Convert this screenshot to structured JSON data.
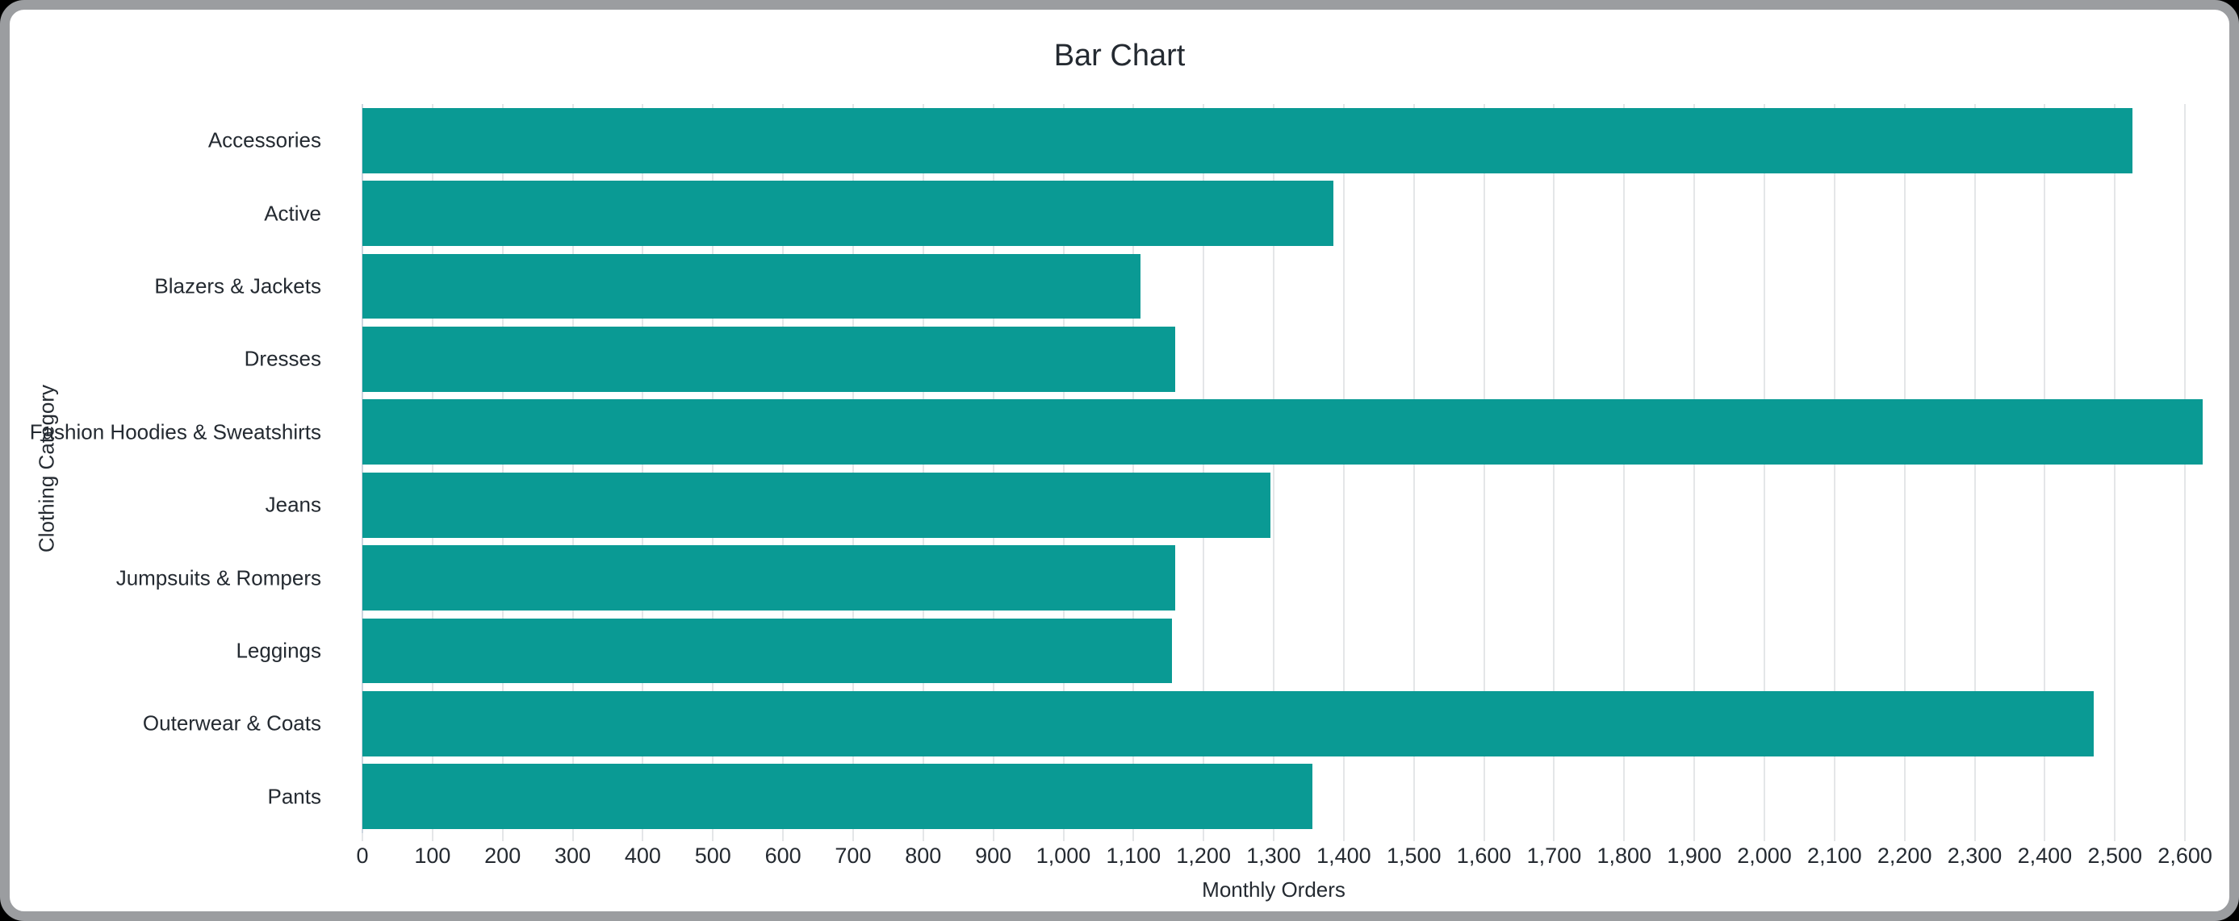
{
  "window": {
    "border_color": "#9b9da0",
    "background_color": "#ffffff"
  },
  "chart_data": {
    "type": "bar",
    "orientation": "horizontal",
    "title": "Bar Chart",
    "xlabel": "Monthly Orders",
    "ylabel": "Clothing Category",
    "categories": [
      "Accessories",
      "Active",
      "Blazers & Jackets",
      "Dresses",
      "Fashion Hoodies & Sweatshirts",
      "Jeans",
      "Jumpsuits & Rompers",
      "Leggings",
      "Outerwear & Coats",
      "Pants"
    ],
    "values": [
      2525,
      1385,
      1110,
      1160,
      2625,
      1295,
      1160,
      1155,
      2470,
      1355
    ],
    "xlim": [
      0,
      2600
    ],
    "xtick_step": 100,
    "xtick_values": [
      0,
      100,
      200,
      300,
      400,
      500,
      600,
      700,
      800,
      900,
      1000,
      1100,
      1200,
      1300,
      1400,
      1500,
      1600,
      1700,
      1800,
      1900,
      2000,
      2100,
      2200,
      2300,
      2400,
      2500,
      2600
    ],
    "xtick_labels": [
      "0",
      "100",
      "200",
      "300",
      "400",
      "500",
      "600",
      "700",
      "800",
      "900",
      "1,000",
      "1,100",
      "1,200",
      "1,300",
      "1,400",
      "1,500",
      "1,600",
      "1,700",
      "1,800",
      "1,900",
      "2,000",
      "2,100",
      "2,200",
      "2,300",
      "2,400",
      "2,500",
      "2,600"
    ],
    "grid": true,
    "legend": false,
    "bar_color": "#0a9a94",
    "text_color": "#242a31",
    "gridline_color": "#e4e6e8"
  }
}
